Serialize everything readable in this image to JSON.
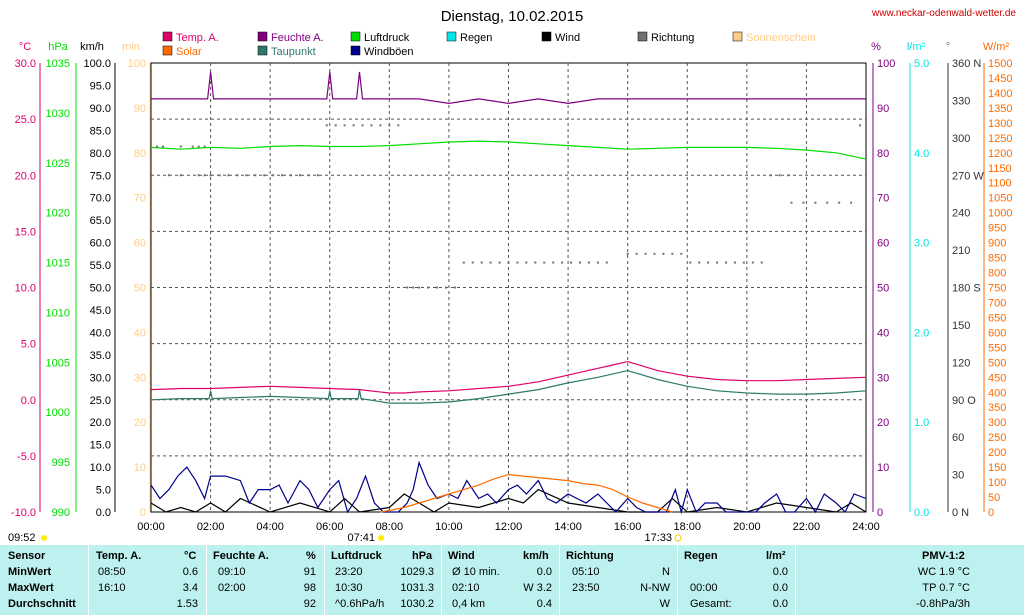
{
  "header": {
    "title": "Dienstag, 10.02.2015",
    "site": "www.neckar-odenwald-wetter.de"
  },
  "colors": {
    "temp": "#e0006a",
    "feuchte": "#800080",
    "luftdruck": "#00dd00",
    "regen": "#00e5e5",
    "wind": "#000000",
    "richtung": "#707070",
    "sonnenschein": "#ffcc88",
    "solar": "#ff6a00",
    "taupunkt": "#2e7a6a",
    "windboeen": "#000088",
    "stats_bg": "#bdf1ef"
  },
  "legend": [
    {
      "key": "temp",
      "label": "Temp. A."
    },
    {
      "key": "feuchte",
      "label": "Feuchte A."
    },
    {
      "key": "luftdruck",
      "label": "Luftdruck"
    },
    {
      "key": "regen",
      "label": "Regen"
    },
    {
      "key": "wind",
      "label": "Wind"
    },
    {
      "key": "richtung",
      "label": "Richtung"
    },
    {
      "key": "sonnenschein",
      "label": "Sonnenschein"
    },
    {
      "key": "solar",
      "label": "Solar"
    },
    {
      "key": "taupunkt",
      "label": "Taupunkt"
    },
    {
      "key": "windboeen",
      "label": "Windböen"
    }
  ],
  "axes_units": {
    "temp": "°C",
    "pressure": "hPa",
    "wind": "km/h",
    "sun": "min",
    "humidity": "%",
    "rain": "l/m²",
    "direction": "°",
    "solar": "W/m²"
  },
  "sun_events": {
    "sunrise": "07:41",
    "sunset": "17:33",
    "left_time": "09:52"
  },
  "chart_data": {
    "type": "line",
    "x_label": "Uhrzeit",
    "x_ticks": [
      "00:00",
      "02:00",
      "04:00",
      "06:00",
      "08:00",
      "10:00",
      "12:00",
      "14:00",
      "16:00",
      "18:00",
      "20:00",
      "22:00",
      "24:00"
    ],
    "x_range": [
      0,
      24
    ],
    "axes": {
      "temp": {
        "range": [
          -10,
          30
        ],
        "ticks": [
          "30.0",
          "25.0",
          "20.0",
          "15.0",
          "10.0",
          "5.0",
          "0.0",
          "-5.0",
          "-10.0"
        ]
      },
      "pressure": {
        "range": [
          990,
          1040
        ],
        "ticks": [
          "1035",
          "1030",
          "1025",
          "1020",
          "1015",
          "1010",
          "1005",
          "1000",
          "995",
          "990"
        ]
      },
      "wind": {
        "range": [
          0,
          100
        ],
        "ticks": [
          "100.0",
          "95.0",
          "90.0",
          "85.0",
          "80.0",
          "75.0",
          "70.0",
          "65.0",
          "60.0",
          "55.0",
          "50.0",
          "45.0",
          "40.0",
          "35.0",
          "30.0",
          "25.0",
          "20.0",
          "15.0",
          "10.0",
          "5.0",
          "0.0"
        ]
      },
      "sun": {
        "range": [
          0,
          100
        ],
        "ticks": [
          "100",
          "90",
          "80",
          "70",
          "60",
          "50",
          "40",
          "30",
          "20",
          "10",
          "0"
        ]
      },
      "humidity": {
        "range": [
          0,
          100
        ],
        "ticks": [
          "100",
          "90",
          "80",
          "70",
          "60",
          "50",
          "40",
          "30",
          "20",
          "10",
          "0"
        ]
      },
      "rain": {
        "range": [
          0,
          5
        ],
        "ticks": [
          "5.0",
          "4.0",
          "3.0",
          "2.0",
          "1.0",
          "0.0"
        ]
      },
      "direction": {
        "range": [
          0,
          360
        ],
        "ticks": [
          "360 N",
          "330",
          "300",
          "270 W",
          "240",
          "210",
          "180 S",
          "150",
          "120",
          "90 O",
          "60",
          "30",
          "0 N"
        ]
      },
      "solar": {
        "range": [
          0,
          1500
        ],
        "ticks": [
          "1500",
          "1450",
          "1400",
          "1350",
          "1300",
          "1250",
          "1200",
          "1150",
          "1100",
          "1050",
          "1000",
          "950",
          "900",
          "850",
          "800",
          "750",
          "700",
          "650",
          "600",
          "550",
          "500",
          "450",
          "400",
          "350",
          "300",
          "250",
          "200",
          "150",
          "100",
          "50",
          "0"
        ]
      }
    },
    "series": [
      {
        "name": "Temp. A.",
        "key": "temp",
        "axis": "temp",
        "x": [
          0,
          1,
          2,
          3,
          4,
          5,
          6,
          7,
          8,
          8.5,
          9,
          10,
          11,
          12,
          13,
          14,
          15,
          15.5,
          16,
          16.5,
          17,
          18,
          19,
          20,
          21,
          22,
          23,
          24
        ],
        "y": [
          0.9,
          1.0,
          1.0,
          1.1,
          1.2,
          1.1,
          1.0,
          0.9,
          0.6,
          0.6,
          0.7,
          0.8,
          1.0,
          1.2,
          1.6,
          2.2,
          2.8,
          3.1,
          3.4,
          3.0,
          2.6,
          2.1,
          1.8,
          1.7,
          1.7,
          1.8,
          1.9,
          2.0
        ]
      },
      {
        "name": "Taupunkt",
        "key": "taupunkt",
        "axis": "temp",
        "x": [
          0,
          1,
          1.95,
          2,
          2.05,
          3,
          4,
          5,
          5.95,
          6,
          6.05,
          6.95,
          7,
          7.05,
          8,
          9,
          10,
          11,
          12,
          13,
          14,
          15,
          16,
          17,
          18,
          19,
          20,
          21,
          22,
          23,
          24
        ],
        "y": [
          0.0,
          0.1,
          0.1,
          0.8,
          0.1,
          0.2,
          0.3,
          0.2,
          0.1,
          0.8,
          0.1,
          0.1,
          0.9,
          0.1,
          -0.3,
          -0.3,
          -0.2,
          0.1,
          0.5,
          0.9,
          1.5,
          2.0,
          2.6,
          1.8,
          1.2,
          0.8,
          0.6,
          0.5,
          0.5,
          0.6,
          0.8
        ]
      },
      {
        "name": "Luftdruck",
        "key": "luftdruck",
        "axis": "pressure",
        "x": [
          0,
          1,
          2,
          3,
          4,
          5,
          6,
          7,
          8,
          9,
          10,
          11,
          12,
          13,
          14,
          15,
          16,
          17,
          18,
          19,
          20,
          21,
          22,
          23,
          24
        ],
        "y": [
          1030.6,
          1030.4,
          1030.6,
          1030.5,
          1030.7,
          1030.8,
          1030.7,
          1030.7,
          1030.8,
          1031.0,
          1031.2,
          1031.3,
          1031.2,
          1031.0,
          1030.8,
          1030.6,
          1030.4,
          1030.5,
          1030.6,
          1030.6,
          1030.6,
          1030.5,
          1030.3,
          1030.0,
          1029.3
        ]
      },
      {
        "name": "Feuchte A.",
        "key": "feuchte",
        "axis": "humidity",
        "x": [
          0,
          1.9,
          2,
          2.1,
          5.9,
          6,
          6.1,
          6.9,
          7,
          7.1,
          9,
          10,
          11,
          12,
          13,
          14,
          15,
          16,
          17,
          18,
          19,
          20,
          21,
          22,
          23,
          24
        ],
        "y": [
          92,
          92,
          98,
          92,
          92,
          98,
          92,
          92,
          98,
          92,
          92,
          91,
          92,
          91,
          92,
          91,
          92,
          92,
          92,
          92,
          92,
          92,
          92,
          92,
          92,
          92
        ]
      },
      {
        "name": "Wind",
        "key": "wind",
        "axis": "wind",
        "x": [
          0,
          0.5,
          1,
          1.5,
          2,
          2.5,
          3,
          4,
          5,
          6,
          6.5,
          7,
          8,
          8.5,
          9,
          9.5,
          10,
          11,
          12,
          12.5,
          13,
          14,
          15,
          16,
          17,
          17.5,
          18,
          19,
          20,
          21,
          22,
          23,
          23.5,
          24
        ],
        "y": [
          2,
          0,
          1,
          0,
          2,
          0,
          3,
          0,
          2,
          0,
          3,
          0,
          1,
          4,
          2,
          0,
          2,
          1,
          3,
          2,
          5,
          2,
          1,
          0,
          0,
          3,
          0,
          1,
          0,
          2,
          1,
          0,
          2,
          0
        ]
      },
      {
        "name": "Windböen",
        "key": "windboeen",
        "axis": "wind",
        "x": [
          0,
          0.3,
          0.6,
          0.9,
          1.2,
          1.5,
          1.8,
          2,
          2.5,
          3,
          3.3,
          3.6,
          4,
          4.3,
          4.6,
          5,
          5.3,
          5.6,
          6,
          6.3,
          6.6,
          6.9,
          7.2,
          7.5,
          7.8,
          8,
          8.3,
          8.6,
          8.8,
          9,
          9.3,
          9.6,
          10,
          10.3,
          10.6,
          11,
          11.3,
          11.6,
          12,
          12.3,
          12.6,
          13,
          13.3,
          13.6,
          14,
          14.3,
          14.6,
          15,
          15.3,
          15.6,
          16,
          16.3,
          16.6,
          17,
          17.3,
          17.6,
          17.8,
          18,
          18.3,
          18.6,
          19,
          19.3,
          19.6,
          20,
          20.3,
          20.6,
          21,
          21.3,
          21.6,
          22,
          22.3,
          22.6,
          23,
          23.3,
          23.6,
          24
        ],
        "y": [
          6,
          3,
          5,
          8,
          10,
          7,
          3,
          8,
          8,
          7,
          2,
          5,
          5,
          6,
          2,
          7,
          5,
          1,
          5,
          7,
          0,
          3,
          8,
          2,
          0,
          0,
          0,
          2,
          5,
          11,
          6,
          3,
          4,
          3,
          7,
          3,
          4,
          2,
          5,
          6,
          4,
          7,
          3,
          2,
          4,
          3,
          2,
          4,
          2,
          0,
          3,
          1,
          0,
          0,
          0,
          5,
          0,
          5,
          0,
          2,
          2,
          0,
          0,
          0,
          0,
          2,
          4,
          0,
          0,
          3,
          0,
          4,
          2,
          0,
          4,
          3
        ]
      },
      {
        "name": "Solar",
        "key": "solar",
        "axis": "solar",
        "x": [
          7.7,
          8,
          8.5,
          9,
          9.5,
          10,
          10.5,
          11,
          11.5,
          12,
          12.5,
          13,
          13.5,
          14,
          14.5,
          15,
          15.5,
          16,
          16.5,
          17,
          17.5
        ],
        "y": [
          0,
          5,
          15,
          30,
          45,
          60,
          75,
          90,
          110,
          125,
          120,
          115,
          110,
          105,
          95,
          90,
          75,
          50,
          30,
          15,
          0
        ]
      },
      {
        "name": "Richtung",
        "key": "richtung",
        "axis": "direction",
        "style": "dots",
        "x": [
          0.2,
          0.4,
          1,
          1.4,
          1.6,
          1.8,
          0.6,
          1.0,
          1.6,
          1.8,
          2.0,
          2.3,
          2.6,
          2.9,
          3.2,
          3.5,
          3.8,
          4.1,
          4.4,
          4.7,
          5.0,
          5.3,
          5.6,
          5.9,
          6.2,
          6.5,
          6.8,
          7.1,
          7.4,
          7.7,
          8.0,
          8.3,
          8.6,
          8.8,
          9,
          9.3,
          9.6,
          9.9,
          10.2,
          10.5,
          10.8,
          11.1,
          11.4,
          11.7,
          12.0,
          12.3,
          12.6,
          12.9,
          13.2,
          13.5,
          13.8,
          14.1,
          14.4,
          14.7,
          15.0,
          15.3,
          16.0,
          16.3,
          16.6,
          16.9,
          17.2,
          17.5,
          17.8,
          18.1,
          18.4,
          18.7,
          19.0,
          19.3,
          19.6,
          19.9,
          20.2,
          20.5,
          20.8,
          21.1,
          21.4,
          21.5,
          21.9,
          22.3,
          22.7,
          23.1,
          23.5,
          23.8
        ],
        "y": [
          293,
          293,
          293,
          293,
          293,
          293,
          270,
          270,
          270,
          270,
          270,
          270,
          270,
          270,
          270,
          270,
          270,
          270,
          270,
          270,
          270,
          270,
          270,
          310,
          310,
          310,
          310,
          310,
          310,
          310,
          310,
          310,
          180,
          180,
          180,
          180,
          180,
          180,
          180,
          200,
          200,
          200,
          200,
          200,
          200,
          200,
          200,
          200,
          200,
          200,
          200,
          200,
          200,
          200,
          200,
          200,
          207,
          207,
          207,
          207,
          207,
          207,
          207,
          200,
          200,
          200,
          200,
          200,
          200,
          200,
          200,
          200,
          270,
          270,
          270,
          248,
          248,
          248,
          248,
          248,
          248,
          310
        ]
      }
    ],
    "grid": true
  },
  "stats": {
    "headers": {
      "sensor": "Sensor",
      "temp": "Temp. A.",
      "temp_unit": "°C",
      "feuchte": "Feuchte A.",
      "feuchte_unit": "%",
      "luftdruck": "Luftdruck",
      "luftdruck_unit": "hPa",
      "wind": "Wind",
      "wind_unit": "km/h",
      "richtung": "Richtung",
      "regen": "Regen",
      "regen_unit": "l/m²",
      "pmv": "PMV-1:2"
    },
    "rows": [
      {
        "label": "MinWert",
        "temp_time": "08:50",
        "temp_val": "0.6",
        "feuchte_time": "09:10",
        "feuchte_val": "91",
        "druck_time": "23:20",
        "druck_val": "1029.3",
        "wind_time": "Ø 10 min.",
        "wind_val": "0.0",
        "richtung_time": "05:10",
        "richtung_val": "N",
        "regen_time": "",
        "regen_val": "0.0",
        "pmv": "WC 1.9 °C"
      },
      {
        "label": "MaxWert",
        "temp_time": "16:10",
        "temp_val": "3.4",
        "feuchte_time": "02:00",
        "feuchte_val": "98",
        "druck_time": "10:30",
        "druck_val": "1031.3",
        "wind_time": "02:10",
        "wind_val": "W 3.2",
        "richtung_time": "23:50",
        "richtung_val": "N-NW",
        "regen_time": "00:00",
        "regen_val": "0.0",
        "pmv": "TP 0.7 °C"
      },
      {
        "label": "Durchschnitt",
        "temp_time": "",
        "temp_val": "1.53",
        "feuchte_time": "",
        "feuchte_val": "92",
        "druck_time": "^0.6hPa/h",
        "druck_val": "1030.2",
        "wind_time": "0,4 km",
        "wind_val": "0.4",
        "richtung_time": "",
        "richtung_val": "W",
        "regen_time": "Gesamt:",
        "regen_val": "0.0",
        "pmv": "-0.8hPa/3h"
      }
    ]
  }
}
